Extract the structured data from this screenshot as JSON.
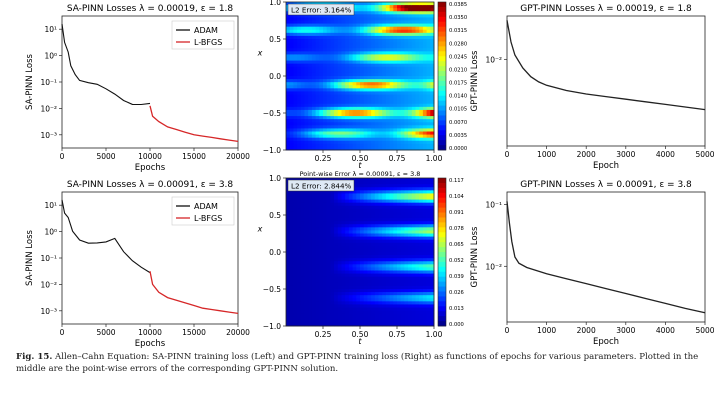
{
  "figure": {
    "label": "Fig. 15.",
    "caption": "Allen–Cahn Equation: SA-PINN training loss (Left) and GPT-PINN training loss (Right) as functions of epochs for various parameters. Plotted in the middle are the point-wise errors of the corresponding GPT-PINN solution."
  },
  "colors": {
    "adam": "#111111",
    "lbfgs": "#d62728",
    "gpt": "#222222"
  },
  "chart_data": [
    {
      "id": "sa1",
      "type": "line",
      "title": "SA-PINN Losses λ = 0.00019, ε = 1.8",
      "xlabel": "Epochs",
      "ylabel": "SA-PINN Loss",
      "xlim": [
        0,
        20000
      ],
      "ylim_log10": [
        -3.5,
        1.5
      ],
      "yscale": "log",
      "xticks": [
        0,
        5000,
        10000,
        15000,
        20000
      ],
      "xtick_labels": [
        "0",
        "5000",
        "10000",
        "15000",
        "20000"
      ],
      "yticks_log10": [
        1,
        0,
        -1,
        -2,
        -3
      ],
      "ytick_labels": [
        "10¹",
        "10⁰",
        "10⁻¹",
        "10⁻²",
        "10⁻³"
      ],
      "legend": [
        "ADAM",
        "L-BFGS"
      ],
      "series": [
        {
          "name": "ADAM",
          "x": [
            0,
            300,
            700,
            1000,
            1500,
            2000,
            3000,
            4000,
            5000,
            6000,
            7000,
            8000,
            9000,
            10000
          ],
          "y_log10": [
            1.2,
            0.5,
            0.0,
            -0.4,
            -0.6,
            -0.8,
            -1.0,
            -1.2,
            -1.4,
            -1.5,
            -1.6,
            -1.7,
            -1.8,
            -1.9
          ]
        },
        {
          "name": "L-BFGS",
          "x": [
            10000,
            10300,
            11000,
            12000,
            13000,
            14000,
            15000,
            16000,
            17000,
            18000,
            19000,
            20000
          ],
          "y_log10": [
            -1.9,
            -2.3,
            -2.5,
            -2.7,
            -2.8,
            -2.9,
            -3.0,
            -3.05,
            -3.1,
            -3.15,
            -3.2,
            -3.25
          ]
        }
      ]
    },
    {
      "id": "sa2",
      "type": "line",
      "title": "SA-PINN Losses λ = 0.00091, ε = 3.8",
      "xlabel": "Epochs",
      "ylabel": "SA-PINN Loss",
      "xlim": [
        0,
        20000
      ],
      "ylim_log10": [
        -3.5,
        1.5
      ],
      "yscale": "log",
      "xticks": [
        0,
        5000,
        10000,
        15000,
        20000
      ],
      "xtick_labels": [
        "0",
        "5000",
        "10000",
        "15000",
        "20000"
      ],
      "yticks_log10": [
        1,
        0,
        -1,
        -2,
        -3
      ],
      "ytick_labels": [
        "10¹",
        "10⁰",
        "10⁻¹",
        "10⁻²",
        "10⁻³"
      ],
      "legend": [
        "ADAM",
        "L-BFGS"
      ],
      "series": [
        {
          "name": "ADAM",
          "x": [
            0,
            300,
            700,
            1200,
            2000,
            3000,
            4000,
            5000,
            6000,
            7000,
            8000,
            9000,
            10000
          ],
          "y_log10": [
            1.2,
            0.7,
            0.4,
            0.0,
            -0.2,
            -0.3,
            -0.4,
            -0.5,
            -0.4,
            -0.8,
            -1.0,
            -1.2,
            -1.5
          ]
        },
        {
          "name": "L-BFGS",
          "x": [
            10000,
            10300,
            11000,
            12000,
            13000,
            14000,
            15000,
            16000,
            17000,
            18000,
            19000,
            20000
          ],
          "y_log10": [
            -1.5,
            -2.0,
            -2.3,
            -2.5,
            -2.6,
            -2.7,
            -2.8,
            -2.9,
            -2.95,
            -3.0,
            -3.05,
            -3.1
          ]
        }
      ]
    },
    {
      "id": "hm1",
      "type": "heatmap",
      "title": "",
      "error_label": "L2 Error: 3.164%",
      "xlabel": "t",
      "ylabel": "x",
      "xticks": [
        0.25,
        0.5,
        0.75,
        1.0
      ],
      "xtick_labels": [
        "0.25",
        "0.50",
        "0.75",
        "1.00"
      ],
      "yticks": [
        1.0,
        0.5,
        0.0,
        -0.5,
        -1.0
      ],
      "ytick_labels": [
        "1.0",
        "0.5",
        "0.0",
        "−0.5",
        "−1.0"
      ],
      "colorbar_ticks": [
        "0.0385",
        "0.0350",
        "0.0315",
        "0.0280",
        "0.0245",
        "0.0210",
        "0.0175",
        "0.0140",
        "0.0105",
        "0.0070",
        "0.0035",
        "0.0000"
      ]
    },
    {
      "id": "hm2",
      "type": "heatmap",
      "title": "Point-wise Error λ = 0.00091, ε = 3.8",
      "error_label": "L2 Error: 2.844%",
      "xlabel": "t",
      "ylabel": "x",
      "xticks": [
        0.25,
        0.5,
        0.75,
        1.0
      ],
      "xtick_labels": [
        "0.25",
        "0.50",
        "0.75",
        "1.00"
      ],
      "yticks": [
        1.0,
        0.5,
        0.0,
        -0.5,
        -1.0
      ],
      "ytick_labels": [
        "1.0",
        "0.5",
        "0.0",
        "−0.5",
        "−1.0"
      ],
      "colorbar_ticks": [
        "0.117",
        "0.104",
        "0.091",
        "0.078",
        "0.065",
        "0.052",
        "0.039",
        "0.026",
        "0.013",
        "0.000"
      ]
    },
    {
      "id": "gpt1",
      "type": "line",
      "title": "GPT-PINN Losses λ = 0.00019, ε = 1.8",
      "xlabel": "Epoch",
      "ylabel": "GPT-PINN Loss",
      "xlim": [
        0,
        5000
      ],
      "ylim_log10": [
        -3.0,
        -1.5
      ],
      "yscale": "log",
      "xticks": [
        0,
        1000,
        2000,
        3000,
        4000,
        5000
      ],
      "xtick_labels": [
        "0",
        "1000",
        "2000",
        "3000",
        "4000",
        "5000"
      ],
      "yticks_log10": [
        -2
      ],
      "ytick_labels": [
        "10⁻²"
      ],
      "series": [
        {
          "name": "GPT-PINN",
          "x": [
            0,
            100,
            200,
            400,
            600,
            800,
            1000,
            1500,
            2000,
            2500,
            3000,
            3500,
            4000,
            4500,
            5000
          ],
          "y_log10": [
            -1.55,
            -1.8,
            -1.95,
            -2.1,
            -2.2,
            -2.26,
            -2.3,
            -2.36,
            -2.4,
            -2.43,
            -2.46,
            -2.49,
            -2.52,
            -2.55,
            -2.58
          ]
        }
      ]
    },
    {
      "id": "gpt2",
      "type": "line",
      "title": "GPT-PINN Losses λ = 0.00091, ε = 3.8",
      "xlabel": "Epoch",
      "ylabel": "GPT-PINN Loss",
      "xlim": [
        0,
        5000
      ],
      "ylim_log10": [
        -2.9,
        -0.8
      ],
      "yscale": "log",
      "xticks": [
        0,
        1000,
        2000,
        3000,
        4000,
        5000
      ],
      "xtick_labels": [
        "0",
        "1000",
        "2000",
        "3000",
        "4000",
        "5000"
      ],
      "yticks_log10": [
        -1,
        -2
      ],
      "ytick_labels": [
        "10⁻¹",
        "10⁻²"
      ],
      "series": [
        {
          "name": "GPT-PINN",
          "x": [
            0,
            60,
            120,
            200,
            300,
            500,
            800,
            1000,
            1500,
            2000,
            2500,
            3000,
            3500,
            4000,
            4500,
            5000
          ],
          "y_log10": [
            -0.95,
            -1.3,
            -1.6,
            -1.85,
            -1.95,
            -2.02,
            -2.08,
            -2.12,
            -2.2,
            -2.28,
            -2.36,
            -2.44,
            -2.52,
            -2.6,
            -2.68,
            -2.75
          ]
        }
      ]
    }
  ]
}
